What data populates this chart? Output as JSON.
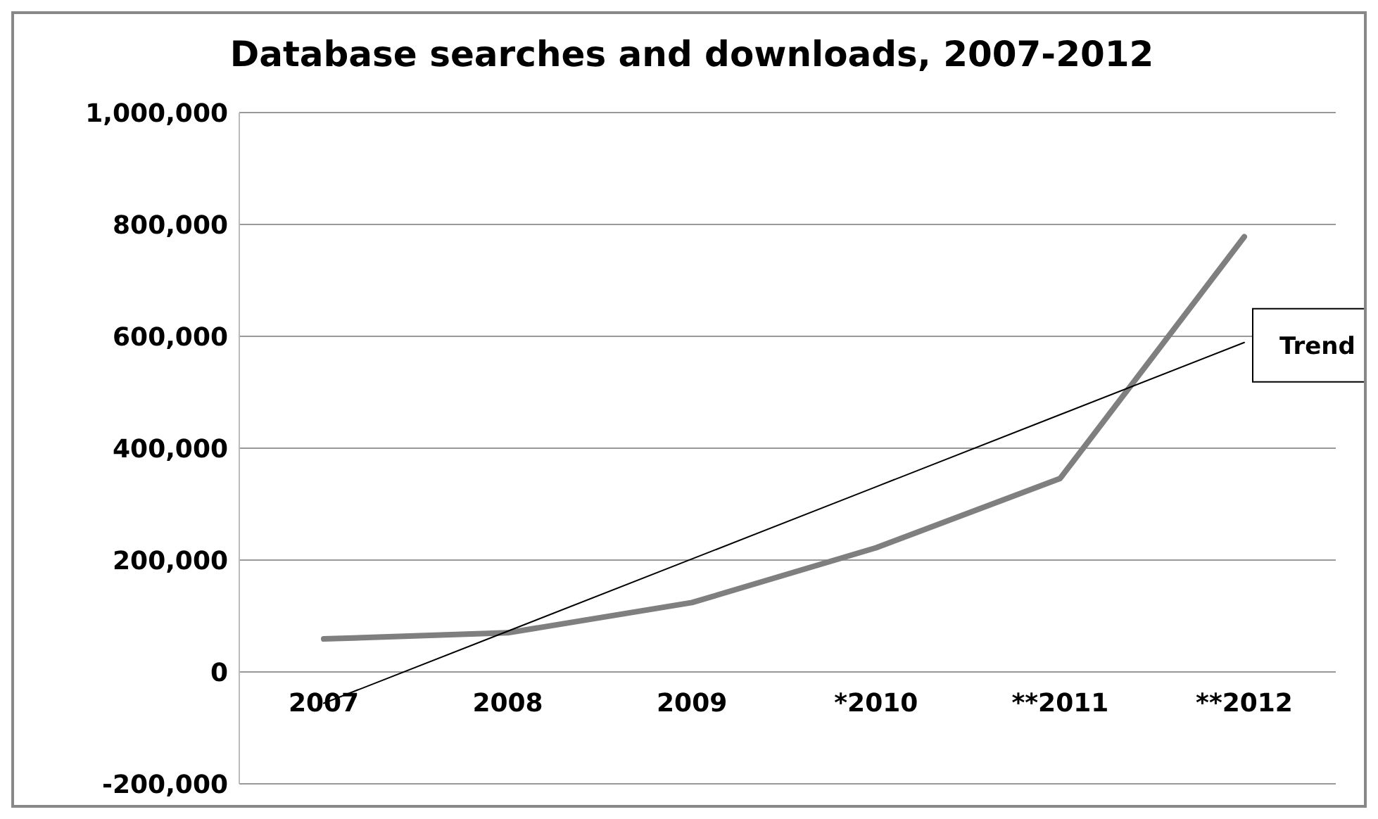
{
  "chart_data": {
    "type": "line",
    "title": "Database searches and downloads, 2007-2012",
    "categories": [
      "2007",
      "2008",
      "2009",
      "*2010",
      "**2011",
      "**2012"
    ],
    "series": [
      {
        "color": "#7f7f7f",
        "values": [
          59000,
          70000,
          124000,
          222000,
          346000,
          778000
        ]
      },
      {
        "name": "Trend",
        "type": "line",
        "color": "#000000",
        "values": [
          -56000,
          73000,
          202000,
          331000,
          460000,
          589000
        ]
      }
    ],
    "ylim": [
      -200000,
      1000000
    ],
    "yticks": [
      {
        "value": -200000,
        "label": "-200,000"
      },
      0,
      {
        "value": 200000,
        "label": "200,000"
      },
      {
        "value": 400000,
        "label": "400,000"
      },
      {
        "value": 600000,
        "label": "600,000"
      },
      {
        "value": 800000,
        "label": "800,000"
      },
      {
        "value": 1000000,
        "label": "1,000,000"
      }
    ],
    "grid": "y",
    "marker": "none",
    "line_style": "solid"
  }
}
